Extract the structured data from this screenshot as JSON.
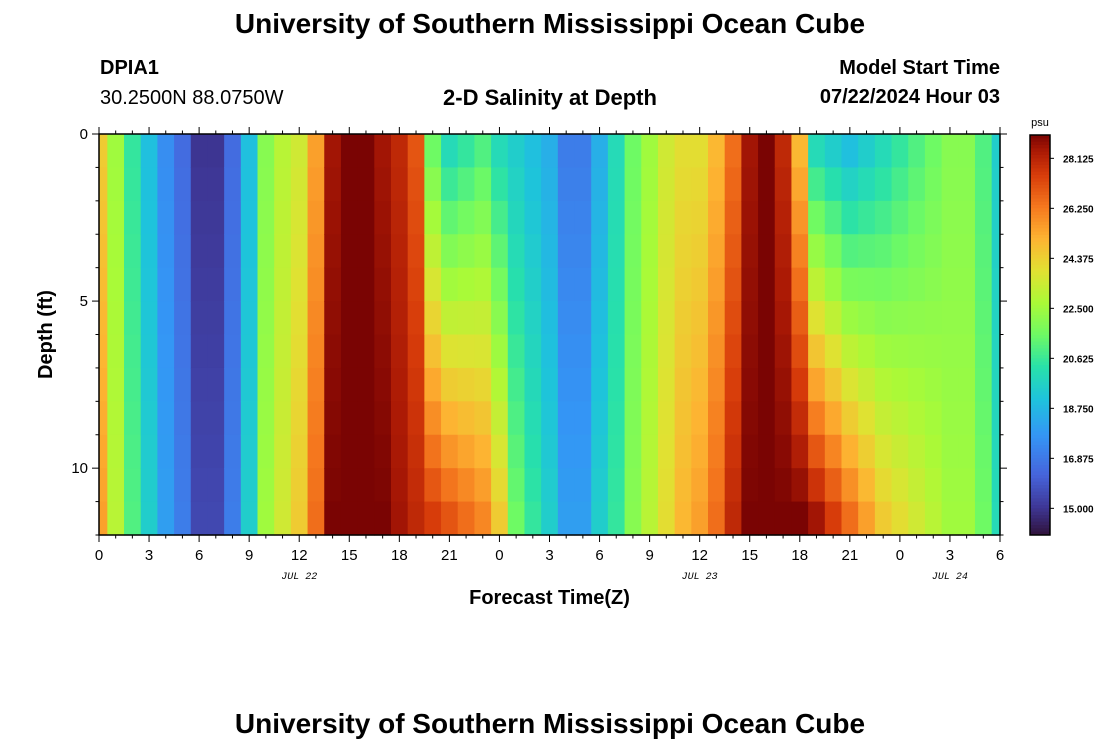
{
  "header": {
    "title": "University of Southern Mississippi Ocean Cube",
    "station_id": "DPIA1",
    "station_coords": "30.2500N  88.0750W",
    "plot_subtitle": "2-D Salinity at Depth",
    "model_start_label": "Model Start Time",
    "model_start_value": "07/22/2024 Hour 03"
  },
  "footer": {
    "title": "University of Southern Mississippi Ocean Cube"
  },
  "chart_data": {
    "type": "heatmap",
    "title": "2-D Salinity at Depth",
    "xlabel": "Forecast Time(Z)",
    "ylabel": "Depth (ft)",
    "x_tick_labels": [
      "0",
      "3",
      "6",
      "9",
      "12",
      "15",
      "18",
      "21",
      "0",
      "3",
      "6",
      "9",
      "12",
      "15",
      "18",
      "21",
      "0",
      "3",
      "6"
    ],
    "x_range_hours": [
      0,
      54
    ],
    "date_labels": [
      {
        "text": "JUL 22",
        "hour": 12
      },
      {
        "text": "JUL 23",
        "hour": 36
      },
      {
        "text": "JUL 24",
        "hour": 51
      }
    ],
    "y_tick_labels": [
      "0",
      "5",
      "10"
    ],
    "y_range_ft": [
      0,
      12
    ],
    "depth_levels_ft": [
      0.5,
      1.5,
      2.5,
      3.5,
      4.5,
      5.5,
      6.5,
      7.5,
      8.5,
      9.5,
      10.5,
      11.5
    ],
    "hours": [
      0,
      1,
      2,
      3,
      4,
      5,
      6,
      7,
      8,
      9,
      10,
      11,
      12,
      13,
      14,
      15,
      16,
      17,
      18,
      19,
      20,
      21,
      22,
      23,
      24,
      25,
      26,
      27,
      28,
      29,
      30,
      31,
      32,
      33,
      34,
      35,
      36,
      37,
      38,
      39,
      40,
      41,
      42,
      43,
      44,
      45,
      46,
      47,
      48,
      49,
      50,
      51,
      52,
      53,
      54
    ],
    "colorbar": {
      "unit": "psu",
      "min": 14.0,
      "max": 29.0,
      "tick_labels": [
        "28.125",
        "26.250",
        "24.375",
        "22.500",
        "20.625",
        "18.750",
        "16.875",
        "15.000"
      ],
      "tick_values": [
        28.125,
        26.25,
        24.375,
        22.5,
        20.625,
        18.75,
        16.875,
        15.0
      ]
    },
    "surface_salinity_psu": [
      24.5,
      22.5,
      20.5,
      19.0,
      17.5,
      16.5,
      15.0,
      15.0,
      16.5,
      19.0,
      22.0,
      23.0,
      23.5,
      25.5,
      28.5,
      29.0,
      29.0,
      28.5,
      28.0,
      27.0,
      21.5,
      20.0,
      20.5,
      21.0,
      20.0,
      19.5,
      19.0,
      18.5,
      17.0,
      17.0,
      18.5,
      20.0,
      21.5,
      22.5,
      23.5,
      24.0,
      24.0,
      25.0,
      26.5,
      28.5,
      29.0,
      28.0,
      25.0,
      20.0,
      19.5,
      19.0,
      19.5,
      20.0,
      20.5,
      21.0,
      21.5,
      22.0,
      22.0,
      21.0,
      19.5
    ],
    "bottom_salinity_psu": [
      25.5,
      23.0,
      21.0,
      19.5,
      18.0,
      17.0,
      15.5,
      15.5,
      17.0,
      19.5,
      22.5,
      23.5,
      24.5,
      26.5,
      29.0,
      29.0,
      29.0,
      29.0,
      28.5,
      28.0,
      27.5,
      27.0,
      26.5,
      26.0,
      24.5,
      21.5,
      20.5,
      19.5,
      18.0,
      18.0,
      19.5,
      20.5,
      22.0,
      23.0,
      24.0,
      25.0,
      25.5,
      26.5,
      28.0,
      29.0,
      29.0,
      29.0,
      29.0,
      28.5,
      27.5,
      26.5,
      25.5,
      24.5,
      24.0,
      23.5,
      23.0,
      22.5,
      22.5,
      21.5,
      20.0
    ]
  }
}
